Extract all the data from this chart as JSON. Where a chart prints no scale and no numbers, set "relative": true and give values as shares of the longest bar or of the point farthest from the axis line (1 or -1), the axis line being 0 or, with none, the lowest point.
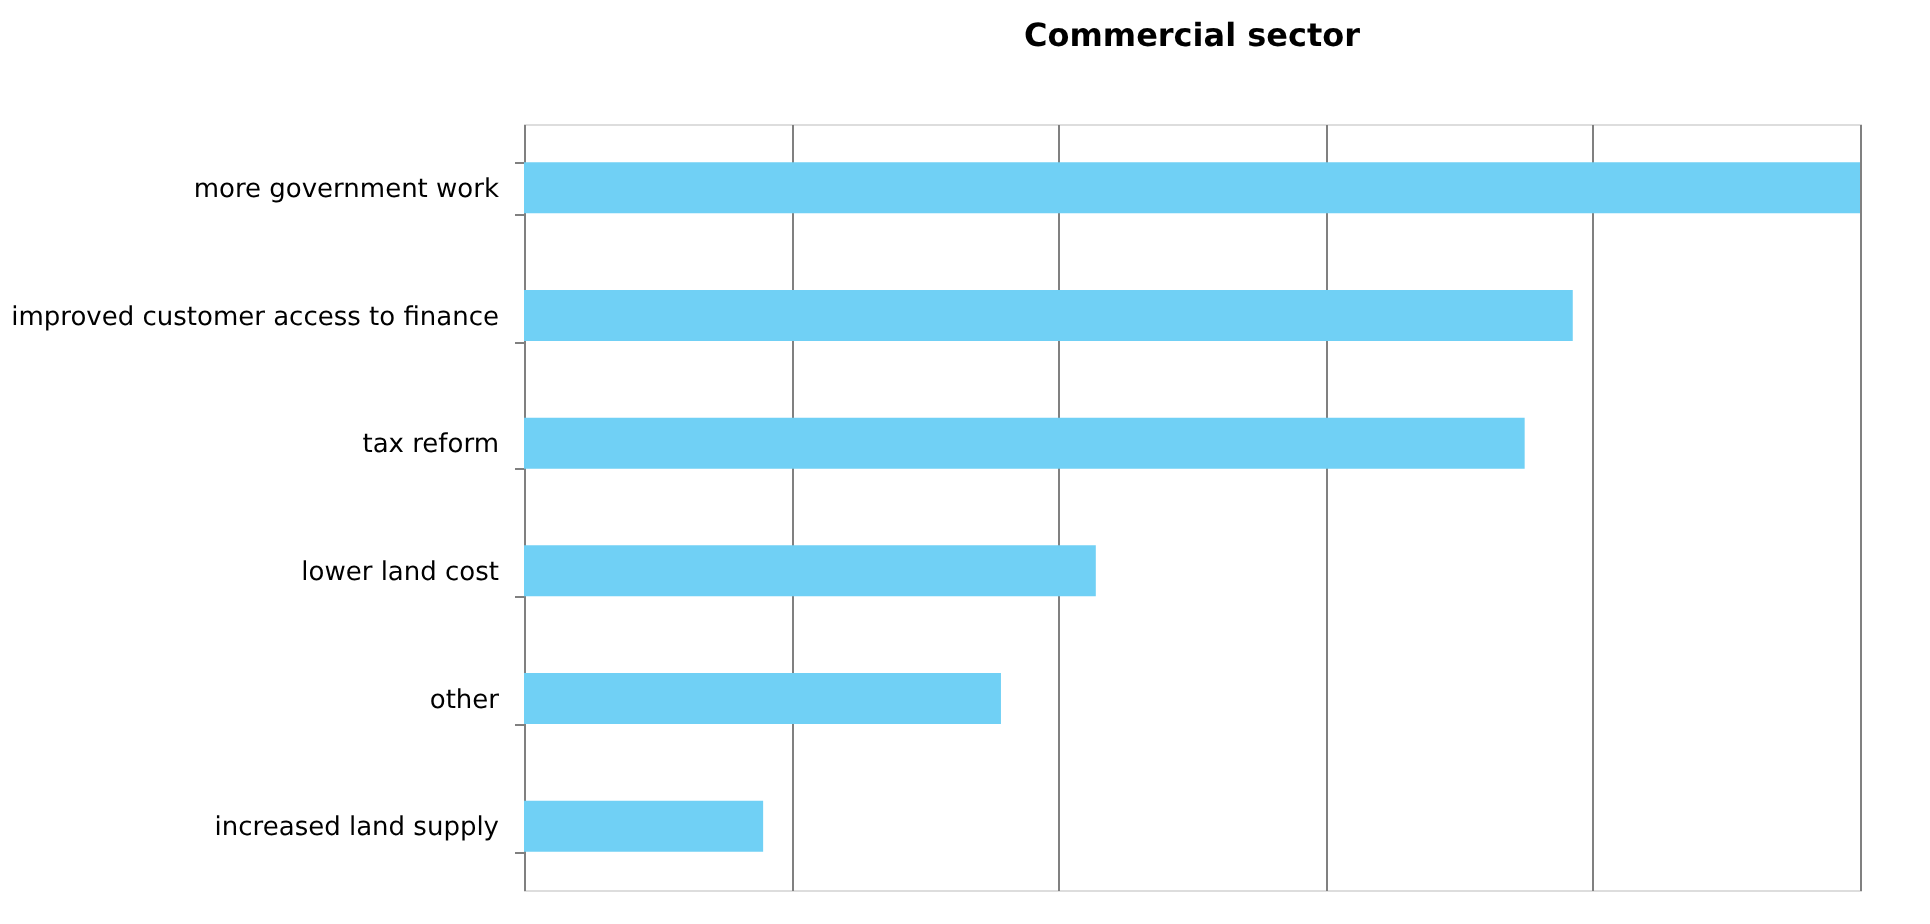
{
  "chart_data": {
    "type": "bar",
    "title": "Commercial sector",
    "orientation": "horizontal",
    "relative": true,
    "grid": "x",
    "categories": [
      "more government work",
      "improved customer access to finance",
      "tax reform",
      "lower land cost",
      "other",
      "increased land supply"
    ],
    "values": [
      1,
      0.785,
      0.749,
      0.428,
      0.357,
      0.179
    ],
    "color": "#70d0f5"
  }
}
